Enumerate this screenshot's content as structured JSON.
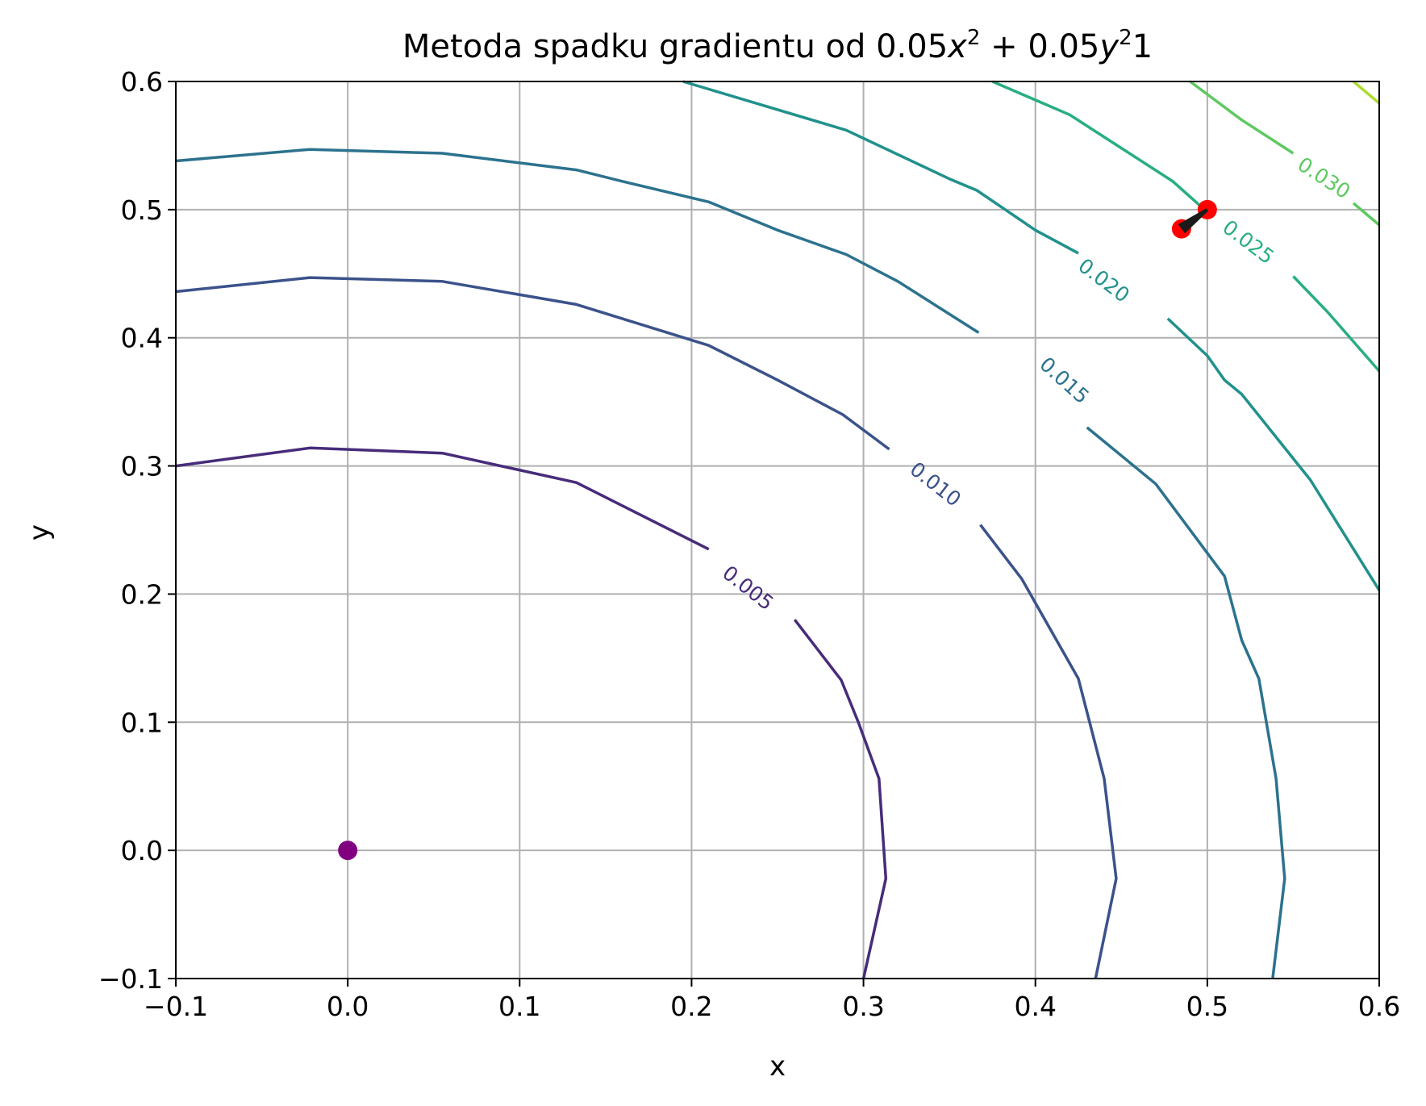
{
  "chart_data": {
    "type": "contour",
    "title": {
      "prefix": "Metoda spadku gradientu od ",
      "t1": "0.05",
      "v1": "x",
      "sup1": "2",
      "plus": " + 0.05",
      "v2": "y",
      "sup2": "2",
      "suffix": "1"
    },
    "xlabel": "x",
    "ylabel": "y",
    "xlim": [
      -0.1,
      0.6
    ],
    "ylim": [
      -0.1,
      0.6
    ],
    "xticks": [
      -0.1,
      0.0,
      0.1,
      0.2,
      0.3,
      0.4,
      0.5,
      0.6
    ],
    "yticks": [
      -0.1,
      0.0,
      0.1,
      0.2,
      0.3,
      0.4,
      0.5,
      0.6
    ],
    "xtick_labels": [
      "−0.1",
      "0.0",
      "0.1",
      "0.2",
      "0.3",
      "0.4",
      "0.5",
      "0.6"
    ],
    "ytick_labels": [
      "−0.1",
      "0.0",
      "0.1",
      "0.2",
      "0.3",
      "0.4",
      "0.5",
      "0.6"
    ],
    "grid": true,
    "contours": [
      {
        "level": 0.005,
        "label": "0.005",
        "color": "#472c7a",
        "label_pos": [
          0.233,
          0.205
        ],
        "label_angle": 38,
        "segments": [
          [
            [
              -0.1,
              0.3
            ],
            [
              -0.022,
              0.314
            ],
            [
              0.055,
              0.31
            ],
            [
              0.133,
              0.287
            ],
            [
              0.21,
              0.235
            ]
          ],
          [
            [
              0.26,
              0.18
            ],
            [
              0.287,
              0.133
            ],
            [
              0.297,
              0.1
            ],
            [
              0.309,
              0.056
            ],
            [
              0.313,
              -0.022
            ],
            [
              0.3,
              -0.1
            ]
          ]
        ]
      },
      {
        "level": 0.01,
        "label": "0.010",
        "color": "#3b528b",
        "label_pos": [
          0.342,
          0.286
        ],
        "label_angle": 38,
        "segments": [
          [
            [
              -0.1,
              0.436
            ],
            [
              -0.022,
              0.447
            ],
            [
              0.055,
              0.444
            ],
            [
              0.133,
              0.426
            ],
            [
              0.21,
              0.394
            ],
            [
              0.25,
              0.367
            ],
            [
              0.288,
              0.34
            ],
            [
              0.315,
              0.313
            ]
          ],
          [
            [
              0.368,
              0.254
            ],
            [
              0.392,
              0.212
            ],
            [
              0.425,
              0.134
            ],
            [
              0.44,
              0.056
            ],
            [
              0.447,
              -0.022
            ],
            [
              0.435,
              -0.1
            ]
          ]
        ]
      },
      {
        "level": 0.015,
        "label": "0.015",
        "color": "#2c728e",
        "label_pos": [
          0.417,
          0.367
        ],
        "label_angle": 42,
        "segments": [
          [
            [
              -0.1,
              0.538
            ],
            [
              -0.022,
              0.547
            ],
            [
              0.055,
              0.544
            ],
            [
              0.133,
              0.531
            ],
            [
              0.16,
              0.522
            ],
            [
              0.21,
              0.506
            ],
            [
              0.25,
              0.484
            ],
            [
              0.29,
              0.465
            ],
            [
              0.32,
              0.444
            ],
            [
              0.367,
              0.404
            ]
          ],
          [
            [
              0.43,
              0.33
            ],
            [
              0.47,
              0.286
            ],
            [
              0.51,
              0.214
            ],
            [
              0.52,
              0.164
            ],
            [
              0.53,
              0.134
            ],
            [
              0.54,
              0.056
            ],
            [
              0.545,
              -0.022
            ],
            [
              0.538,
              -0.1
            ]
          ]
        ]
      },
      {
        "level": 0.02,
        "label": "0.020",
        "color": "#21918c",
        "label_pos": [
          0.44,
          0.445
        ],
        "label_angle": 37,
        "segments": [
          [
            [
              0.195,
              0.6
            ],
            [
              0.21,
              0.594
            ],
            [
              0.29,
              0.562
            ],
            [
              0.35,
              0.524
            ],
            [
              0.366,
              0.515
            ],
            [
              0.4,
              0.484
            ],
            [
              0.425,
              0.466
            ]
          ],
          [
            [
              0.477,
              0.415
            ],
            [
              0.5,
              0.386
            ],
            [
              0.51,
              0.367
            ],
            [
              0.52,
              0.356
            ],
            [
              0.56,
              0.289
            ],
            [
              0.6,
              0.203
            ]
          ]
        ]
      },
      {
        "level": 0.025,
        "label": "0.025",
        "color": "#28ae80",
        "label_pos": [
          0.524,
          0.475
        ],
        "label_angle": 37,
        "segments": [
          [
            [
              0.375,
              0.6
            ],
            [
              0.42,
              0.574
            ],
            [
              0.45,
              0.548
            ],
            [
              0.48,
              0.522
            ],
            [
              0.5,
              0.498
            ]
          ],
          [
            [
              0.55,
              0.448
            ],
            [
              0.57,
              0.42
            ],
            [
              0.6,
              0.374
            ]
          ]
        ]
      },
      {
        "level": 0.03,
        "label": "0.030",
        "color": "#5ec962",
        "label_pos": [
          0.568,
          0.525
        ],
        "label_angle": 33,
        "segments": [
          [
            [
              0.49,
              0.6
            ],
            [
              0.52,
              0.57
            ],
            [
              0.55,
              0.544
            ]
          ],
          [
            [
              0.585,
              0.505
            ],
            [
              0.6,
              0.488
            ]
          ]
        ]
      },
      {
        "level": 0.035,
        "label": "",
        "color": "#addc30",
        "label_pos": null,
        "label_angle": 0,
        "segments": [
          [
            [
              0.585,
              0.6
            ],
            [
              0.6,
              0.583
            ]
          ]
        ]
      }
    ],
    "points": [
      {
        "name": "minimum",
        "x": 0.0,
        "y": 0.0,
        "color": "#800080"
      },
      {
        "name": "start",
        "x": 0.5,
        "y": 0.5,
        "color": "#ff0000"
      },
      {
        "name": "step-1",
        "x": 0.485,
        "y": 0.485,
        "color": "#ff0000"
      }
    ],
    "arrow": {
      "from": [
        0.5,
        0.5
      ],
      "to": [
        0.485,
        0.485
      ],
      "color": "#1a1a1a"
    }
  }
}
